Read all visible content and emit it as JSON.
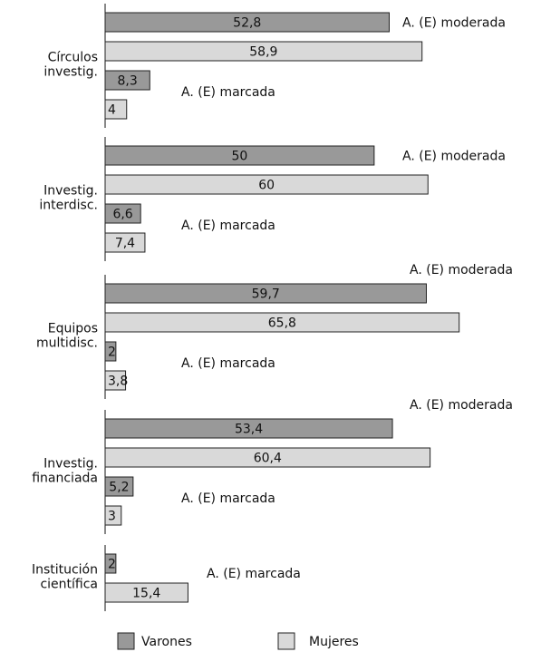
{
  "chart_data": {
    "type": "bar",
    "orientation": "horizontal",
    "xlim": [
      0,
      80
    ],
    "series": [
      {
        "name": "Varones",
        "color": "#999999"
      },
      {
        "name": "Mujeres",
        "color": "#d9d9d9"
      }
    ],
    "groups": [
      {
        "label": [
          "Círculos",
          "investig."
        ],
        "rows": [
          {
            "label": "A. (E) moderada",
            "values": [
              52.8,
              58.9
            ],
            "value_labels": [
              "52,8",
              "58,9"
            ]
          },
          {
            "label": "A. (E) marcada",
            "values": [
              8.3,
              4
            ],
            "value_labels": [
              "8,3",
              "4"
            ]
          }
        ]
      },
      {
        "label": [
          "Investig.",
          "interdisc."
        ],
        "rows": [
          {
            "label": "A. (E) moderada",
            "values": [
              50,
              60
            ],
            "value_labels": [
              "50",
              "60"
            ]
          },
          {
            "label": "A. (E) marcada",
            "values": [
              6.6,
              7.4
            ],
            "value_labels": [
              "6,6",
              "7,4"
            ]
          }
        ]
      },
      {
        "label": [
          "Equipos",
          "multidisc."
        ],
        "rows": [
          {
            "label": "A. (E) moderada",
            "values": [
              59.7,
              65.8
            ],
            "value_labels": [
              "59,7",
              "65,8"
            ]
          },
          {
            "label": "A. (E) marcada",
            "values": [
              2,
              3.8
            ],
            "value_labels": [
              "2",
              "3,8"
            ]
          }
        ]
      },
      {
        "label": [
          "Investig.",
          "financiada"
        ],
        "rows": [
          {
            "label": "A. (E) moderada",
            "values": [
              53.4,
              60.4
            ],
            "value_labels": [
              "53,4",
              "60,4"
            ]
          },
          {
            "label": "A. (E) marcada",
            "values": [
              5.2,
              3
            ],
            "value_labels": [
              "5,2",
              "3"
            ]
          }
        ]
      },
      {
        "label": [
          "Institución",
          "científica"
        ],
        "rows": [
          {
            "label": "A. (E) marcada",
            "values": [
              2,
              15.4
            ],
            "value_labels": [
              "2",
              "15,4"
            ]
          }
        ]
      }
    ]
  }
}
